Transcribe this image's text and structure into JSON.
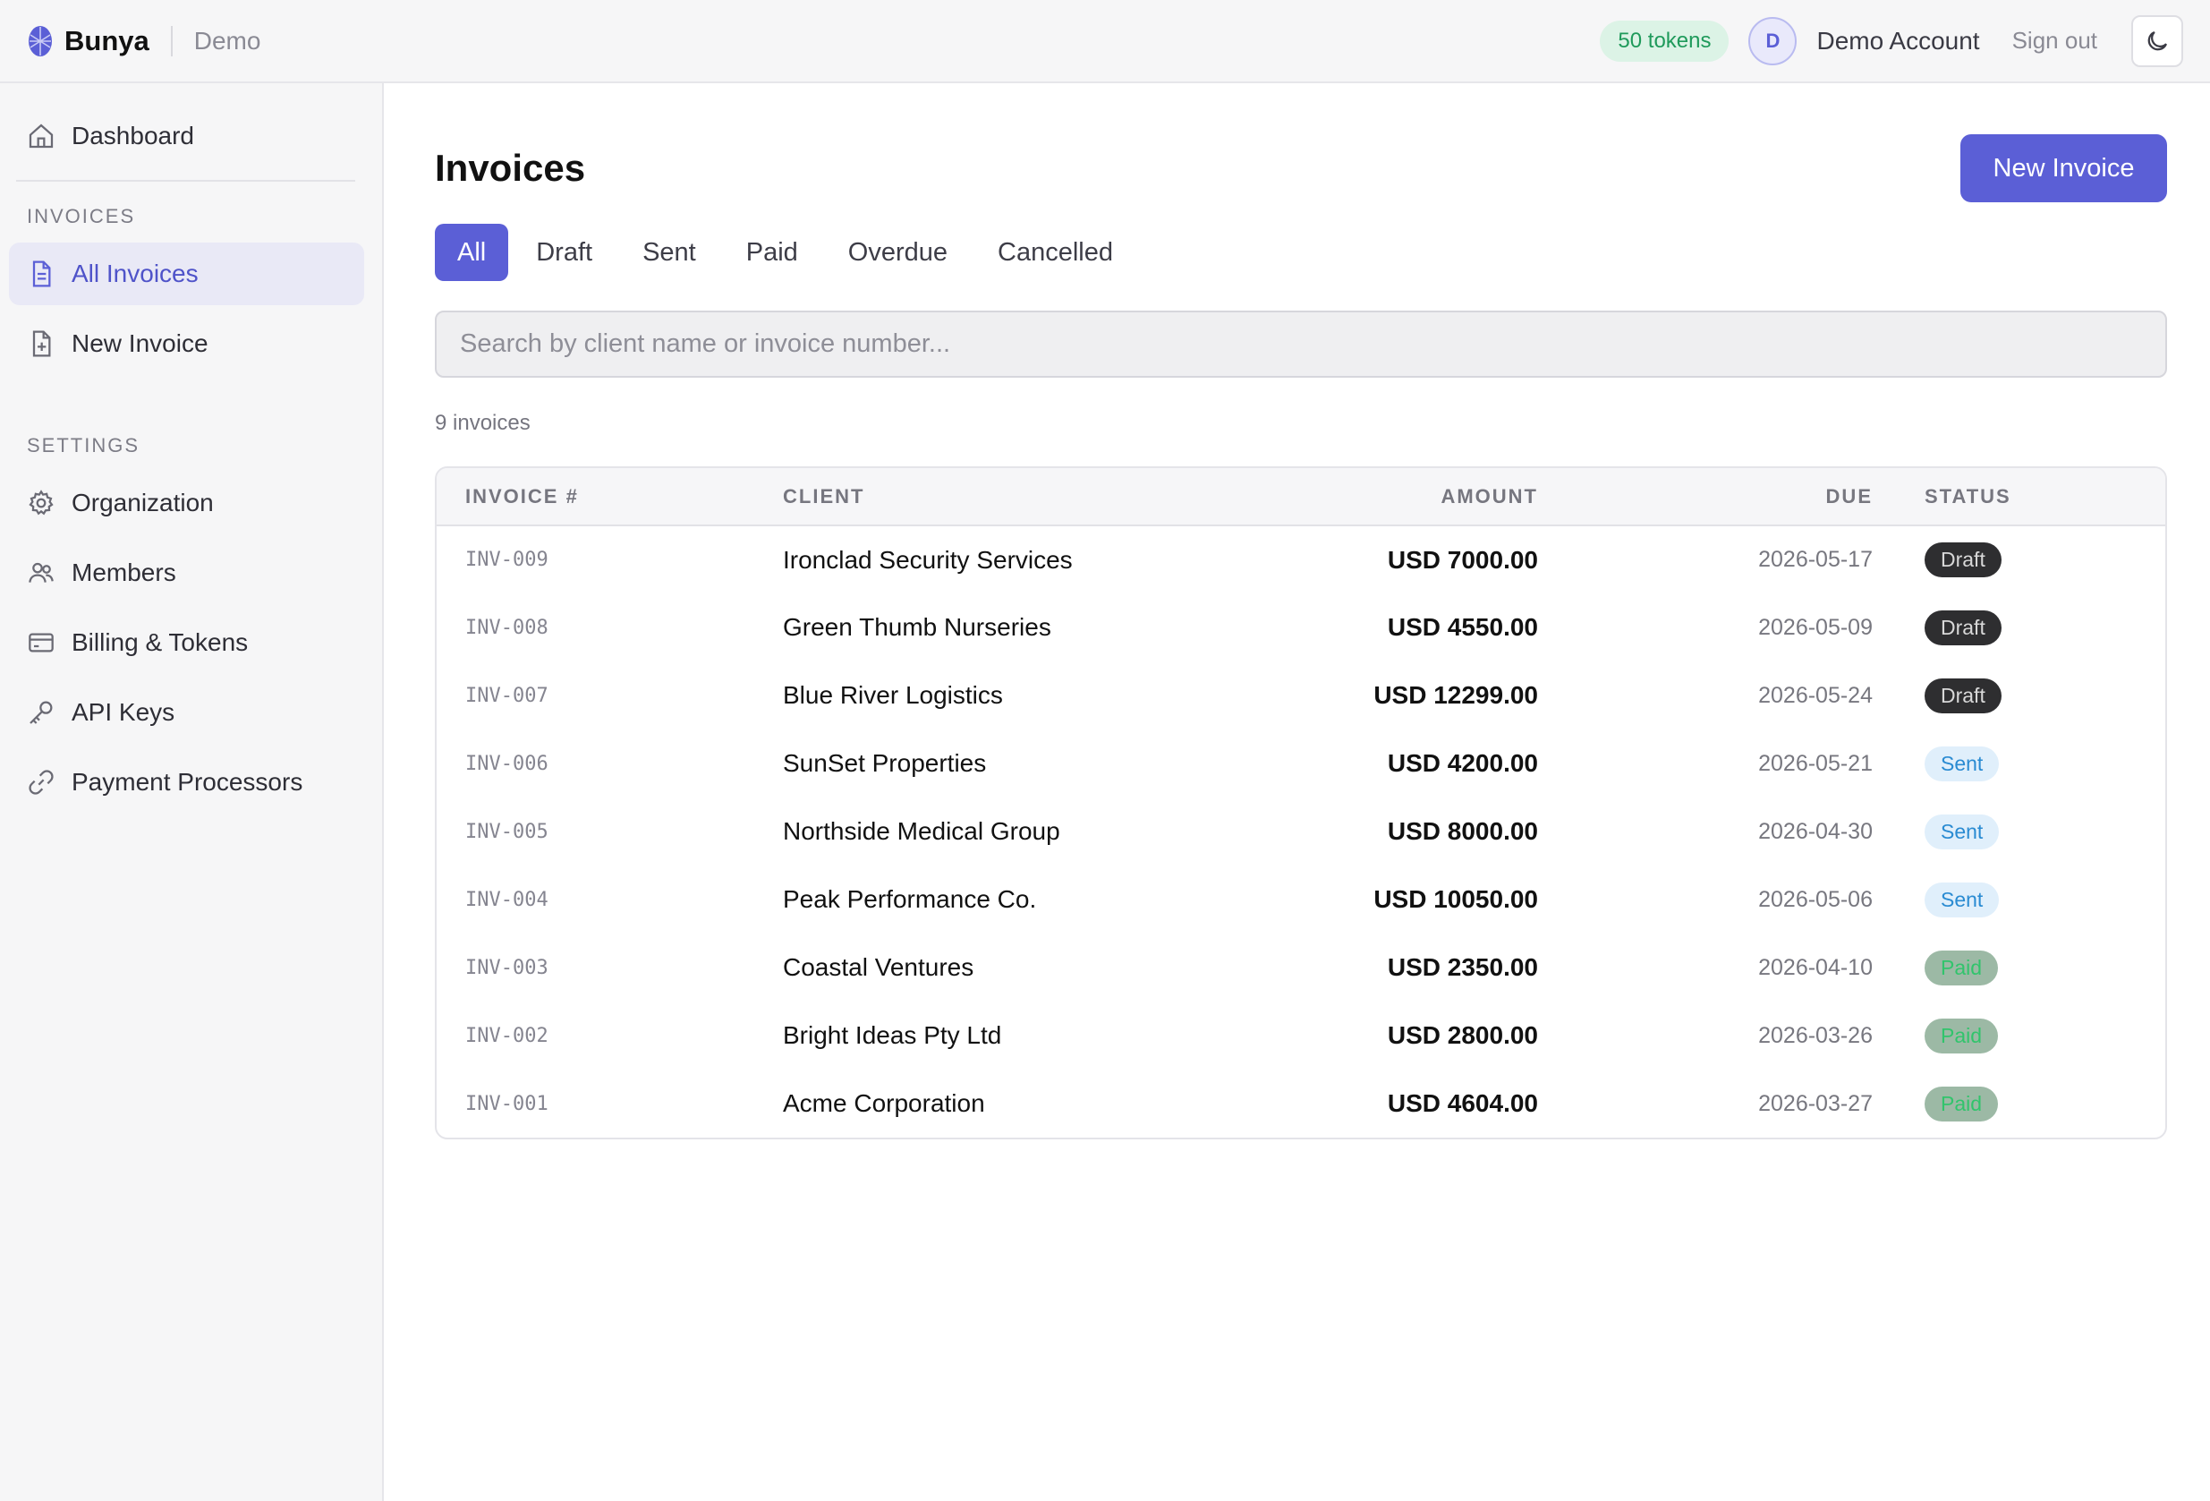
{
  "app": {
    "name": "Bunya",
    "environment": "Demo",
    "tokens": "50 tokens",
    "avatar_initial": "D",
    "account_name": "Demo Account",
    "sign_out": "Sign out"
  },
  "sidebar": {
    "dashboard": "Dashboard",
    "invoices_section": "INVOICES",
    "invoices_items": [
      {
        "label": "All Invoices",
        "icon": "document-icon",
        "active": true
      },
      {
        "label": "New Invoice",
        "icon": "document-plus-icon",
        "active": false
      }
    ],
    "settings_section": "SETTINGS",
    "settings_items": [
      {
        "label": "Organization",
        "icon": "gear-icon"
      },
      {
        "label": "Members",
        "icon": "users-icon"
      },
      {
        "label": "Billing & Tokens",
        "icon": "credit-card-icon"
      },
      {
        "label": "API Keys",
        "icon": "key-icon"
      },
      {
        "label": "Payment Processors",
        "icon": "link-icon"
      }
    ]
  },
  "main": {
    "title": "Invoices",
    "new_invoice_button": "New Invoice",
    "tabs": [
      "All",
      "Draft",
      "Sent",
      "Paid",
      "Overdue",
      "Cancelled"
    ],
    "active_tab": "All",
    "search_placeholder": "Search by client name or invoice number...",
    "count_label": "9 invoices",
    "table": {
      "headers": [
        "INVOICE #",
        "CLIENT",
        "AMOUNT",
        "DUE",
        "STATUS"
      ],
      "rows": [
        {
          "number": "INV-009",
          "client": "Ironclad Security Services",
          "amount": "USD 7000.00",
          "due": "2026-05-17",
          "status": "Draft"
        },
        {
          "number": "INV-008",
          "client": "Green Thumb Nurseries",
          "amount": "USD 4550.00",
          "due": "2026-05-09",
          "status": "Draft"
        },
        {
          "number": "INV-007",
          "client": "Blue River Logistics",
          "amount": "USD 12299.00",
          "due": "2026-05-24",
          "status": "Draft"
        },
        {
          "number": "INV-006",
          "client": "SunSet Properties",
          "amount": "USD 4200.00",
          "due": "2026-05-21",
          "status": "Sent"
        },
        {
          "number": "INV-005",
          "client": "Northside Medical Group",
          "amount": "USD 8000.00",
          "due": "2026-04-30",
          "status": "Sent"
        },
        {
          "number": "INV-004",
          "client": "Peak Performance Co.",
          "amount": "USD 10050.00",
          "due": "2026-05-06",
          "status": "Sent"
        },
        {
          "number": "INV-003",
          "client": "Coastal Ventures",
          "amount": "USD 2350.00",
          "due": "2026-04-10",
          "status": "Paid"
        },
        {
          "number": "INV-002",
          "client": "Bright Ideas Pty Ltd",
          "amount": "USD 2800.00",
          "due": "2026-03-26",
          "status": "Paid"
        },
        {
          "number": "INV-001",
          "client": "Acme Corporation",
          "amount": "USD 4604.00",
          "due": "2026-03-27",
          "status": "Paid"
        }
      ]
    }
  },
  "colors": {
    "accent": "#5b5fd6",
    "tokens_badge_bg": "#dcf3e6",
    "tokens_badge_text": "#1f9a5b",
    "draft_badge_bg": "#2e2e30",
    "sent_badge_bg": "#e0effb",
    "paid_badge_bg": "#9cb9a5"
  }
}
